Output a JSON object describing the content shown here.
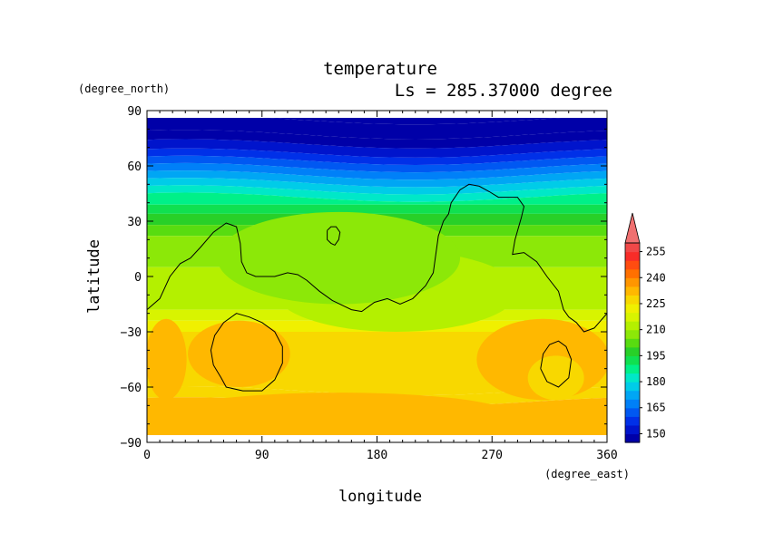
{
  "chart_data": {
    "type": "heatmap",
    "title": "temperature",
    "subtitle": "Ls = 285.37000 degree",
    "xlabel": "longitude",
    "ylabel": "latitude",
    "x_units": "(degree_east)",
    "y_units": "(degree_north)",
    "xlim": [
      0,
      360
    ],
    "ylim": [
      -90,
      90
    ],
    "xticks": [
      0,
      90,
      180,
      270,
      360
    ],
    "yticks": [
      90,
      60,
      30,
      0,
      -30,
      -60,
      -90
    ],
    "xtick_labels": [
      "0",
      "90",
      "180",
      "270",
      "360"
    ],
    "ytick_labels": [
      "90",
      "60",
      "30",
      "0",
      "−30",
      "−60",
      "−90"
    ],
    "colorbar": {
      "levels": [
        145,
        150,
        155,
        160,
        165,
        170,
        175,
        180,
        185,
        190,
        195,
        200,
        205,
        210,
        215,
        220,
        225,
        230,
        235,
        240,
        245,
        250,
        255,
        260
      ],
      "colors": [
        "#0000a8",
        "#0014cc",
        "#0030e8",
        "#0058f2",
        "#0080f8",
        "#00a6f4",
        "#00cce8",
        "#00e8c8",
        "#00f088",
        "#10e050",
        "#28d028",
        "#58dc10",
        "#8ce808",
        "#b4f000",
        "#d8f400",
        "#f0f000",
        "#f8d800",
        "#ffb800",
        "#ff9600",
        "#ff7000",
        "#ff4c10",
        "#f82c28",
        "#f04848",
        "#f07070"
      ],
      "tick_labels": [
        "150",
        "165",
        "180",
        "195",
        "210",
        "225",
        "240",
        "255"
      ],
      "tick_values": [
        150,
        165,
        180,
        195,
        210,
        225,
        240,
        255
      ],
      "extend": "max"
    },
    "bands": [
      {
        "lat": 90,
        "value": 145
      },
      {
        "lat": 85,
        "value": 145
      },
      {
        "lat": 77,
        "value": 148
      },
      {
        "lat": 72,
        "value": 152
      },
      {
        "lat": 67,
        "value": 157
      },
      {
        "lat": 63,
        "value": 162
      },
      {
        "lat": 59,
        "value": 167
      },
      {
        "lat": 55,
        "value": 172
      },
      {
        "lat": 51,
        "value": 177
      },
      {
        "lat": 47,
        "value": 182
      },
      {
        "lat": 43,
        "value": 187
      },
      {
        "lat": 39,
        "value": 192
      },
      {
        "lat": 34,
        "value": 197
      },
      {
        "lat": 28,
        "value": 202
      },
      {
        "lat": 22,
        "value": 207
      },
      {
        "lat": 5,
        "value": 212
      },
      {
        "lat": -18,
        "value": 217
      },
      {
        "lat": -24,
        "value": 222
      },
      {
        "lat": -30,
        "value": 226
      },
      {
        "lat": -62,
        "value": 226
      },
      {
        "lat": -68,
        "value": 231
      },
      {
        "lat": -90,
        "value": 231
      }
    ],
    "patches": [
      {
        "lon": 195,
        "lat": -8,
        "rx": 95,
        "ry": 22,
        "value": 212
      },
      {
        "lon": 150,
        "lat": 10,
        "rx": 95,
        "ry": 25,
        "value": 208
      },
      {
        "lon": 150,
        "lat": -75,
        "rx": 135,
        "ry": 12,
        "value": 231
      },
      {
        "lon": 310,
        "lat": -45,
        "rx": 52,
        "ry": 22,
        "value": 234
      },
      {
        "lon": 320,
        "lat": -55,
        "rx": 22,
        "ry": 12,
        "value": 226
      },
      {
        "lon": 72,
        "lat": -42,
        "rx": 40,
        "ry": 18,
        "value": 231
      },
      {
        "lon": 15,
        "lat": -45,
        "rx": 16,
        "ry": 22,
        "value": 231
      }
    ],
    "topography_contours": [
      [
        [
          0,
          -18
        ],
        [
          10,
          -12
        ],
        [
          18,
          0
        ],
        [
          26,
          7
        ],
        [
          34,
          10
        ],
        [
          42,
          16
        ],
        [
          52,
          24
        ],
        [
          62,
          29
        ],
        [
          70,
          27
        ],
        [
          73,
          18
        ],
        [
          74,
          8
        ],
        [
          78,
          2
        ],
        [
          85,
          0
        ],
        [
          100,
          0
        ],
        [
          110,
          2
        ],
        [
          118,
          1
        ],
        [
          125,
          -2
        ],
        [
          135,
          -8
        ],
        [
          145,
          -13
        ],
        [
          160,
          -18
        ],
        [
          168,
          -19
        ],
        [
          178,
          -14
        ],
        [
          188,
          -12
        ],
        [
          198,
          -15
        ],
        [
          208,
          -12
        ],
        [
          218,
          -5
        ],
        [
          224,
          2
        ],
        [
          226,
          12
        ],
        [
          228,
          22
        ],
        [
          232,
          30
        ],
        [
          236,
          34
        ],
        [
          238,
          40
        ],
        [
          245,
          47
        ],
        [
          252,
          50
        ],
        [
          260,
          49
        ],
        [
          268,
          46
        ],
        [
          275,
          43
        ],
        [
          290,
          43
        ],
        [
          295,
          38
        ],
        [
          293,
          32
        ],
        [
          288,
          20
        ],
        [
          286,
          12
        ],
        [
          295,
          13
        ],
        [
          305,
          8
        ],
        [
          313,
          0
        ],
        [
          322,
          -8
        ],
        [
          326,
          -18
        ],
        [
          330,
          -22
        ],
        [
          336,
          -25
        ],
        [
          342,
          -30
        ],
        [
          350,
          -28
        ],
        [
          360,
          -20
        ]
      ],
      [
        [
          141,
          25
        ],
        [
          144,
          27
        ],
        [
          148,
          27
        ],
        [
          151,
          24
        ],
        [
          150,
          20
        ],
        [
          147,
          17
        ],
        [
          144,
          18
        ],
        [
          141,
          20
        ],
        [
          141,
          25
        ]
      ],
      [
        [
          58,
          -55
        ],
        [
          52,
          -48
        ],
        [
          50,
          -40
        ],
        [
          53,
          -32
        ],
        [
          60,
          -25
        ],
        [
          70,
          -20
        ],
        [
          80,
          -22
        ],
        [
          90,
          -25
        ],
        [
          100,
          -30
        ],
        [
          106,
          -38
        ],
        [
          106,
          -47
        ],
        [
          100,
          -56
        ],
        [
          90,
          -62
        ],
        [
          75,
          -62
        ],
        [
          62,
          -60
        ],
        [
          58,
          -55
        ]
      ],
      [
        [
          308,
          -50
        ],
        [
          310,
          -42
        ],
        [
          315,
          -37
        ],
        [
          322,
          -35
        ],
        [
          328,
          -38
        ],
        [
          332,
          -45
        ],
        [
          330,
          -55
        ],
        [
          322,
          -60
        ],
        [
          313,
          -57
        ],
        [
          308,
          -50
        ]
      ]
    ]
  }
}
